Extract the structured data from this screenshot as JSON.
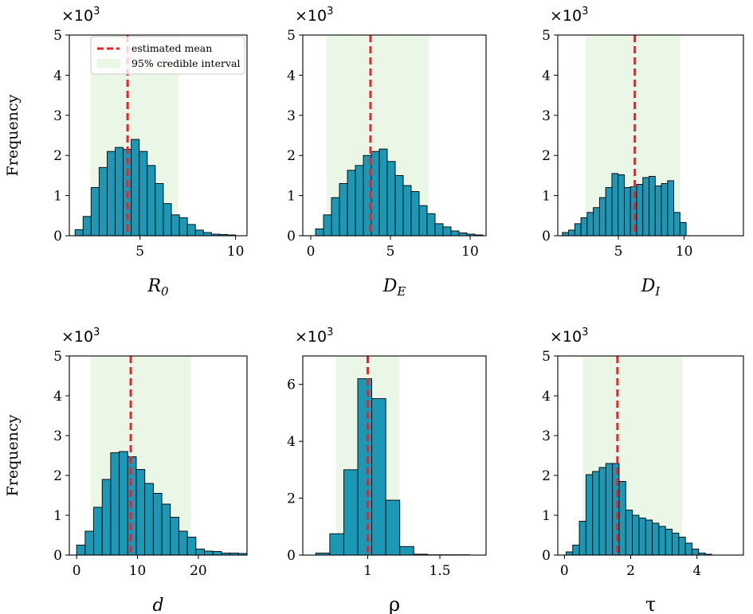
{
  "figure": {
    "ylabel": "Frequency",
    "legend": {
      "mean_label": "estimated mean",
      "ci_label": "95% credible interval",
      "location": "upper-right of first panel"
    },
    "colors": {
      "bar_fill": "#1b98b5",
      "bar_edge": "#000000",
      "mean_line": "#e8242a",
      "ci_band": "#eaf6e6"
    }
  },
  "chart_data": [
    {
      "type": "bar",
      "title": "",
      "xlabel": "R_0",
      "xlabel_main": "R",
      "xlabel_sub": "0",
      "ylabel": "Frequency",
      "multiplier": "×10",
      "multiplier_exp": "3",
      "xlim": [
        1.3,
        10.6
      ],
      "ylim": [
        0,
        5
      ],
      "xticks": [
        5,
        10
      ],
      "yticks": [
        0,
        1,
        2,
        3,
        4,
        5
      ],
      "bin_start": 1.6,
      "bin_width": 0.42,
      "values": [
        0.15,
        0.48,
        1.2,
        1.7,
        2.1,
        2.2,
        2.15,
        2.4,
        2.1,
        1.75,
        1.3,
        0.8,
        0.52,
        0.45,
        0.28,
        0.14,
        0.08,
        0.04,
        0.03,
        0.02
      ],
      "mean": 4.35,
      "ci": [
        2.4,
        7.0
      ]
    },
    {
      "type": "bar",
      "title": "",
      "xlabel": "D_E",
      "xlabel_main": "D",
      "xlabel_sub": "E",
      "ylabel": "",
      "multiplier": "×10",
      "multiplier_exp": "3",
      "xlim": [
        -0.5,
        11.0
      ],
      "ylim": [
        0,
        5
      ],
      "xticks": [
        0,
        5,
        10
      ],
      "yticks": [
        0,
        1,
        2,
        3,
        4,
        5
      ],
      "bin_start": 0.3,
      "bin_width": 0.5,
      "values": [
        0.17,
        0.52,
        0.95,
        1.3,
        1.63,
        1.75,
        2.0,
        2.1,
        2.16,
        1.85,
        1.5,
        1.25,
        1.1,
        0.75,
        0.55,
        0.3,
        0.22,
        0.12,
        0.07,
        0.04,
        0.02
      ],
      "mean": 3.75,
      "ci": [
        1.0,
        7.4
      ]
    },
    {
      "type": "bar",
      "title": "",
      "xlabel": "D_I",
      "xlabel_main": "D",
      "xlabel_sub": "I",
      "ylabel": "",
      "multiplier": "×10",
      "multiplier_exp": "3",
      "xlim": [
        0.4,
        14.5
      ],
      "ylim": [
        0,
        5
      ],
      "xticks": [
        5,
        10
      ],
      "yticks": [
        0,
        1,
        2,
        3,
        4,
        5
      ],
      "bin_start": 0.75,
      "bin_width": 0.47,
      "values": [
        0.08,
        0.14,
        0.3,
        0.45,
        0.58,
        0.7,
        0.95,
        1.2,
        1.55,
        1.52,
        1.2,
        1.22,
        1.28,
        1.45,
        1.48,
        1.24,
        1.3,
        1.37,
        0.58,
        0.33
      ],
      "mean": 6.25,
      "ci": [
        2.5,
        9.7
      ]
    },
    {
      "type": "bar",
      "title": "",
      "xlabel": "d",
      "xlabel_main": "d",
      "xlabel_sub": "",
      "ylabel": "Frequency",
      "multiplier": "×10",
      "multiplier_exp": "3",
      "xlim": [
        -1.2,
        28.0
      ],
      "ylim": [
        0,
        5
      ],
      "xticks": [
        0,
        10,
        20
      ],
      "yticks": [
        0,
        1,
        2,
        3,
        4,
        5
      ],
      "bin_start": 0.0,
      "bin_width": 1.4,
      "values": [
        0.25,
        0.6,
        1.2,
        1.9,
        2.57,
        2.6,
        2.47,
        2.15,
        1.8,
        1.55,
        1.28,
        0.95,
        0.6,
        0.45,
        0.15,
        0.1,
        0.09,
        0.05,
        0.05,
        0.04
      ],
      "mean": 8.9,
      "ci": [
        2.3,
        18.8
      ]
    },
    {
      "type": "bar",
      "title": "",
      "xlabel": "ρ",
      "xlabel_main": "ρ",
      "xlabel_sub": "",
      "ylabel": "",
      "multiplier": "×10",
      "multiplier_exp": "3",
      "xlim": [
        0.55,
        1.82
      ],
      "ylim": [
        0,
        7
      ],
      "xticks": [
        1.0,
        1.5
      ],
      "yticks": [
        0,
        2,
        4,
        6
      ],
      "ytick_labels": [
        "0",
        "2",
        "4",
        "6"
      ],
      "bin_start": 0.64,
      "bin_width": 0.097,
      "values": [
        0.07,
        0.75,
        3.0,
        6.2,
        5.5,
        1.93,
        0.3,
        0.03,
        0.01,
        0.01,
        0.01
      ],
      "mean": 1.0,
      "ci": [
        0.78,
        1.22
      ]
    },
    {
      "type": "bar",
      "title": "",
      "xlabel": "τ",
      "xlabel_main": "τ",
      "xlabel_sub": "",
      "ylabel": "",
      "multiplier": "×10",
      "multiplier_exp": "3",
      "xlim": [
        -0.2,
        5.4
      ],
      "ylim": [
        0,
        5
      ],
      "xticks": [
        0,
        2,
        4
      ],
      "yticks": [
        0,
        1,
        2,
        3,
        4,
        5
      ],
      "bin_start": 0.05,
      "bin_width": 0.2,
      "values": [
        0.08,
        0.25,
        0.85,
        2.02,
        2.1,
        2.2,
        2.3,
        2.3,
        1.85,
        1.13,
        1.0,
        0.93,
        0.88,
        0.8,
        0.72,
        0.65,
        0.55,
        0.45,
        0.3,
        0.15,
        0.05,
        0.02
      ],
      "mean": 1.6,
      "ci": [
        0.55,
        3.55
      ]
    }
  ]
}
